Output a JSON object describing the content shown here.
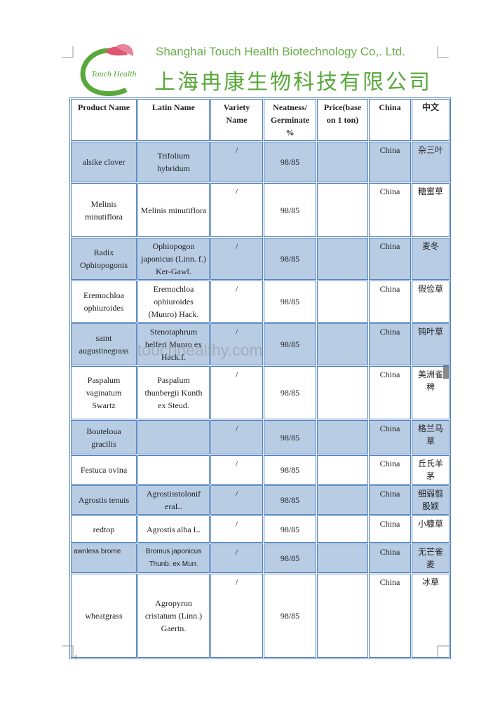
{
  "header": {
    "logo_text": "Touch Health",
    "company_en": "Shanghai Touch Health Biotechnology Co,. Ltd.",
    "company_cn": "上海冉康生物科技有限公司"
  },
  "table": {
    "headers": [
      "Product Name",
      "Latin Name",
      "Variety Name",
      "Neatness/ Germinate %",
      "Price(base on 1 ton)",
      "China",
      "中文"
    ],
    "rows": [
      {
        "product": "alsike clover",
        "latin": "Trifolium hybridum",
        "variety": "/",
        "neatness": "98/85",
        "origin": "China",
        "chinese": "杂三叶"
      },
      {
        "product": "Melinis minutiflora",
        "latin": "Melinis minutiflora",
        "variety": "/",
        "neatness": "98/85",
        "origin": "China",
        "chinese": "糖蜜草"
      },
      {
        "product": "Radix Ophiopogonis",
        "latin": "Ophiopogon japonicus (Linn. f.) Ker-Gawl.",
        "variety": "/",
        "neatness": "98/85",
        "origin": "China",
        "chinese": "麦冬"
      },
      {
        "product": "Eremochloa ophiuroides",
        "latin": "Eremochloa ophiuroides (Munro) Hack.",
        "variety": "/",
        "neatness": "98/85",
        "origin": "China",
        "chinese": "假俭草"
      },
      {
        "product": "saint augustinegrass",
        "latin": "Stenotaphrum helferi Munro ex Hack.f.",
        "variety": "/",
        "neatness": "98/85",
        "origin": "China",
        "chinese": "钝叶草"
      },
      {
        "product": "Paspalum vaginatum Swartz",
        "latin": "Paspalum thunbergii Kunth ex Steud.",
        "variety": "/",
        "neatness": "98/85",
        "origin": "China",
        "chinese": "美洲雀稗"
      },
      {
        "product": "Bouteloua gracilis",
        "variety": "/",
        "neatness": "98/85",
        "origin": "China",
        "chinese": "格兰马草"
      },
      {
        "product": "Festuca ovina",
        "variety": "/",
        "neatness": "98/85",
        "origin": "China",
        "chinese": "丘氏羊茅"
      },
      {
        "product": "Agrostis tenuis",
        "latin": "Agrostisstolonif eraL.",
        "variety": "/",
        "neatness": "98/85",
        "origin": "China",
        "chinese": "细弱翦股颖"
      },
      {
        "product": "redtop",
        "latin": "Agrostis alba L.",
        "variety": "/",
        "neatness": "98/85",
        "origin": "China",
        "chinese": "小糠草"
      },
      {
        "product": "awnless brome",
        "latin": "Bromus japonicus Thunb. ex Murr.",
        "variety": "/",
        "neatness": "98/85",
        "origin": "China",
        "chinese": "无芒雀麦"
      },
      {
        "product": "wheatgrass",
        "latin": "Agropyron cristatum (Linn.) Gaertn.",
        "variety": "/",
        "neatness": "98/85",
        "origin": "China",
        "chinese": "冰草"
      }
    ]
  },
  "watermark": "touchhealthy.com",
  "page_number": "4"
}
